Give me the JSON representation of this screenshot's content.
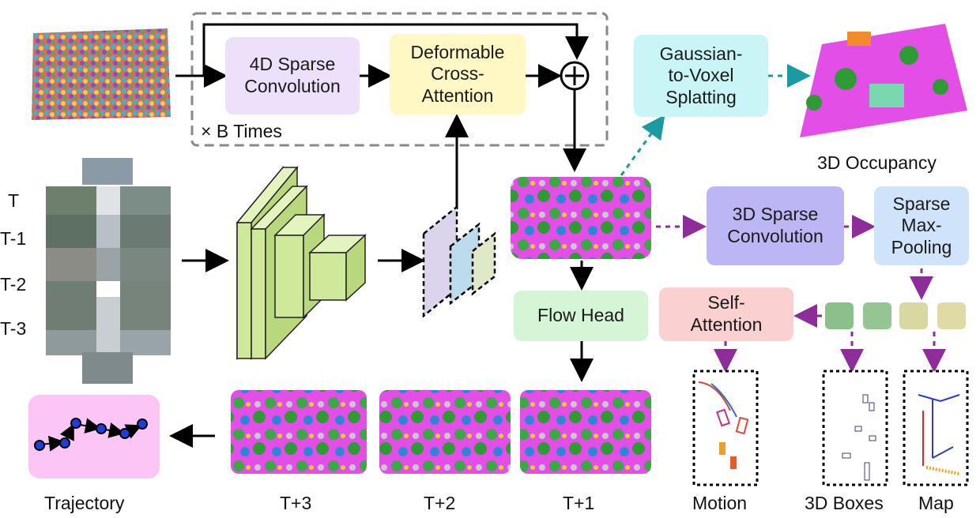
{
  "blocks": {
    "sparse_conv_4d": "4D Sparse\nConvolution",
    "deformable_attn": "Deformable\nCross-\nAttention",
    "times_label": "× B Times",
    "gaussian_splat": "Gaussian-\nto-Voxel\nSplatting",
    "sparse_conv_3d": "3D Sparse\nConvolution",
    "max_pool": "Sparse\nMax-\nPooling",
    "flow_head": "Flow Head",
    "self_attn": "Self-\nAttention",
    "plus_symbol": "+"
  },
  "outputs": {
    "occupancy": "3D Occupancy",
    "trajectory": "Trajectory",
    "motion": "Motion",
    "boxes": "3D Boxes",
    "map": "Map"
  },
  "frames": [
    "T",
    "T-1",
    "T-2",
    "T-3"
  ],
  "future_frames": [
    "T+3",
    "T+2",
    "T+1"
  ],
  "colors": {
    "sparse_conv_4d": "#ece0fb",
    "deformable_attn": "#fff8c4",
    "gaussian_splat": "#c9f5f6",
    "sparse_conv_3d": "#bcb6f4",
    "max_pool": "#cfe3fa",
    "flow_head": "#d4f6d6",
    "self_attn": "#fbd0d0",
    "trajectory_bg": "#fbc6f5",
    "backbone": "#cfe89a",
    "arrow_purple": "#8e2d9a",
    "arrow_teal": "#1b9aa3"
  }
}
